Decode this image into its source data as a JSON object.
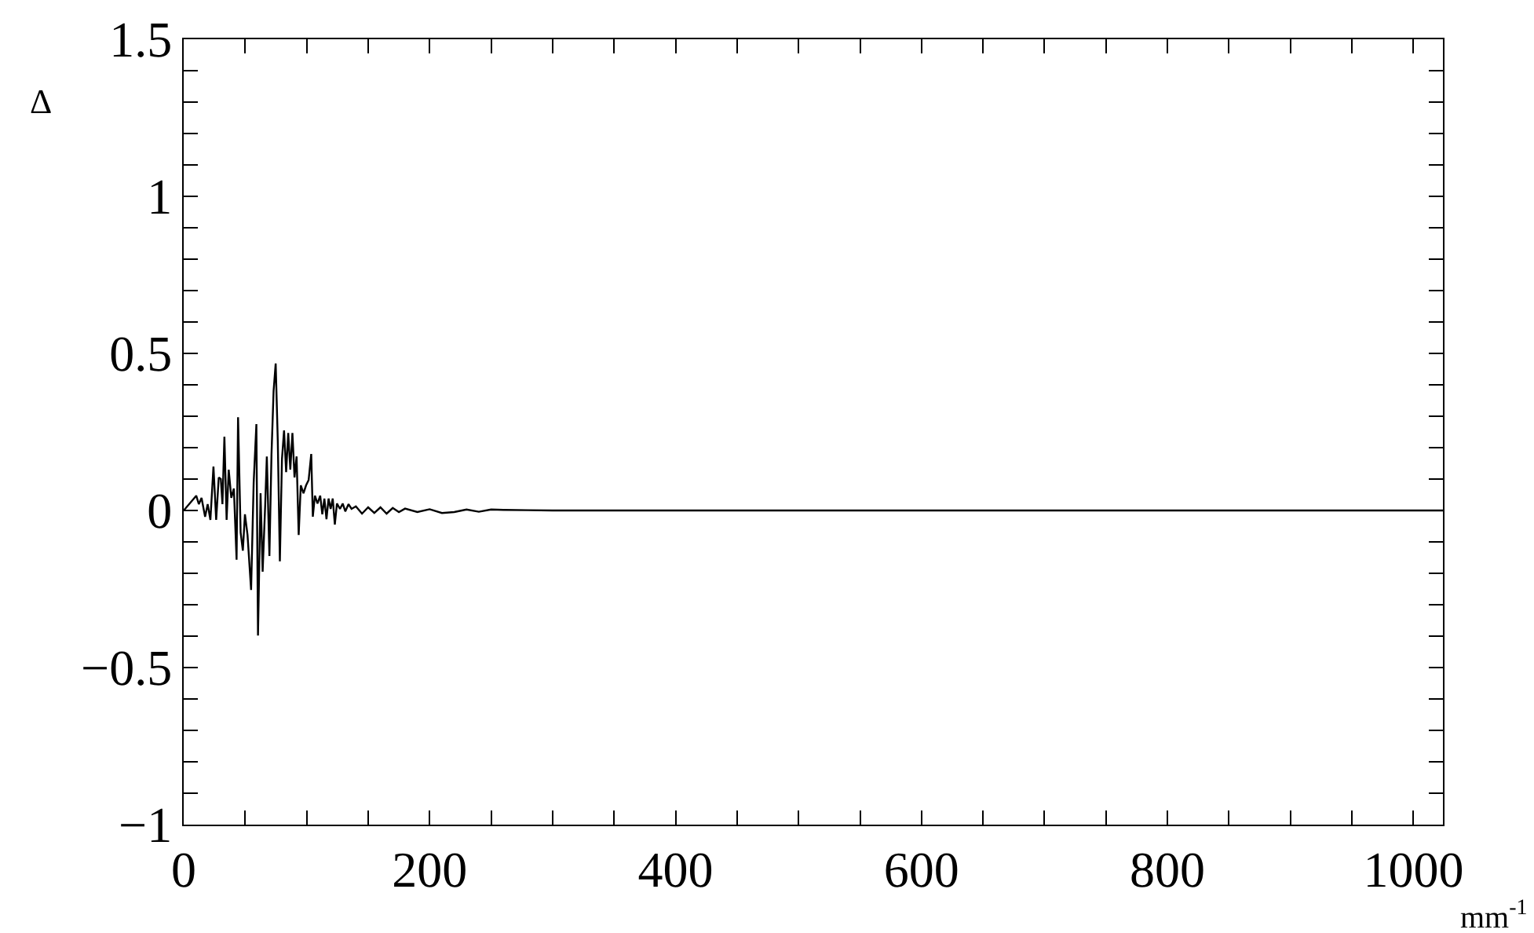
{
  "chart_data": {
    "type": "line",
    "xlabel": "mm$^{-1}$",
    "ylabel": "Δ",
    "x": [
      0,
      10.2,
      12.3,
      14.5,
      17.4,
      19.5,
      21.7,
      24.2,
      26.4,
      28.5,
      30.2,
      31.5,
      33.1,
      34.9,
      36.6,
      38.7,
      40.8,
      43.0,
      44.2,
      46.3,
      48.1,
      49.8,
      51.9,
      54.8,
      56.9,
      59.1,
      60.4,
      62.5,
      64.2,
      66.3,
      67.6,
      69.7,
      71.4,
      73.1,
      74.8,
      76.5,
      78.2,
      79.9,
      81.6,
      83.3,
      85.0,
      86.7,
      88.4,
      90.1,
      91.8,
      93.5,
      95.2,
      97.4,
      99.5,
      101.6,
      103.7,
      105.0,
      106.7,
      108.8,
      111.0,
      112.7,
      114.4,
      116.1,
      117.8,
      119.5,
      121.2,
      122.9,
      124.6,
      127.1,
      129.3,
      131.4,
      134,
      136.5,
      140,
      145,
      150,
      155,
      160,
      165,
      170,
      175,
      180,
      190,
      200,
      210,
      220,
      230,
      240,
      250,
      260,
      280,
      300,
      1024
    ],
    "series": [
      {
        "color": "#000000",
        "values": [
          0,
          0.047,
          0.02,
          0.04,
          -0.02,
          0.02,
          -0.03,
          0.14,
          -0.03,
          0.105,
          0.1,
          0.02,
          0.235,
          -0.03,
          0.13,
          0.04,
          0.07,
          -0.157,
          0.297,
          -0.07,
          -0.128,
          -0.012,
          -0.078,
          -0.253,
          0.088,
          0.275,
          -0.398,
          0.055,
          -0.195,
          0.022,
          0.172,
          -0.145,
          0.18,
          0.38,
          0.468,
          0.222,
          -0.162,
          0.163,
          0.255,
          0.122,
          0.247,
          0.13,
          0.247,
          0.105,
          0.172,
          -0.078,
          0.08,
          0.055,
          0.08,
          0.097,
          0.18,
          -0.02,
          0.047,
          0.022,
          0.047,
          -0.012,
          0.038,
          -0.028,
          0.038,
          0.005,
          0.038,
          -0.045,
          0.022,
          0.005,
          0.022,
          -0.003,
          0.02,
          0.005,
          0.013,
          -0.01,
          0.01,
          -0.008,
          0.01,
          -0.01,
          0.008,
          -0.005,
          0.006,
          -0.005,
          0.004,
          -0.008,
          -0.005,
          0.003,
          -0.004,
          0.003,
          0.002,
          0.001,
          0,
          0
        ]
      }
    ],
    "xlim": [
      0,
      1024
    ],
    "xticks": [
      0,
      {
        "value": 50,
        "label": null
      },
      {
        "value": 100,
        "label": null
      },
      {
        "value": 150,
        "label": null
      },
      200,
      {
        "value": 250,
        "label": null
      },
      {
        "value": 300,
        "label": null
      },
      {
        "value": 350,
        "label": null
      },
      400,
      {
        "value": 450,
        "label": null
      },
      {
        "value": 500,
        "label": null
      },
      {
        "value": 550,
        "label": null
      },
      600,
      {
        "value": 650,
        "label": null
      },
      {
        "value": 700,
        "label": null
      },
      {
        "value": 750,
        "label": null
      },
      800,
      {
        "value": 850,
        "label": null
      },
      {
        "value": 900,
        "label": null
      },
      {
        "value": 950,
        "label": null
      },
      1000
    ],
    "ylim": [
      -1,
      1.5
    ],
    "yticks": [
      {
        "value": -1,
        "label": "−1"
      },
      {
        "value": -0.9,
        "label": null
      },
      {
        "value": -0.8,
        "label": null
      },
      {
        "value": -0.7,
        "label": null
      },
      {
        "value": -0.6,
        "label": null
      },
      {
        "value": -0.5,
        "label": "−0.5"
      },
      {
        "value": -0.4,
        "label": null
      },
      {
        "value": -0.3,
        "label": null
      },
      {
        "value": -0.2,
        "label": null
      },
      {
        "value": -0.1,
        "label": null
      },
      0,
      {
        "value": 0.1,
        "label": null
      },
      {
        "value": 0.2,
        "label": null
      },
      {
        "value": 0.3,
        "label": null
      },
      {
        "value": 0.4,
        "label": null
      },
      0.5,
      {
        "value": 0.6,
        "label": null
      },
      {
        "value": 0.7,
        "label": null
      },
      {
        "value": 0.8,
        "label": null
      },
      {
        "value": 0.9,
        "label": null
      },
      1,
      {
        "value": 1.1,
        "label": null
      },
      {
        "value": 1.2,
        "label": null
      },
      {
        "value": 1.3,
        "label": null
      },
      {
        "value": 1.4,
        "label": null
      },
      1.5
    ],
    "grid": false,
    "marker": "none",
    "line_style": "solid"
  }
}
